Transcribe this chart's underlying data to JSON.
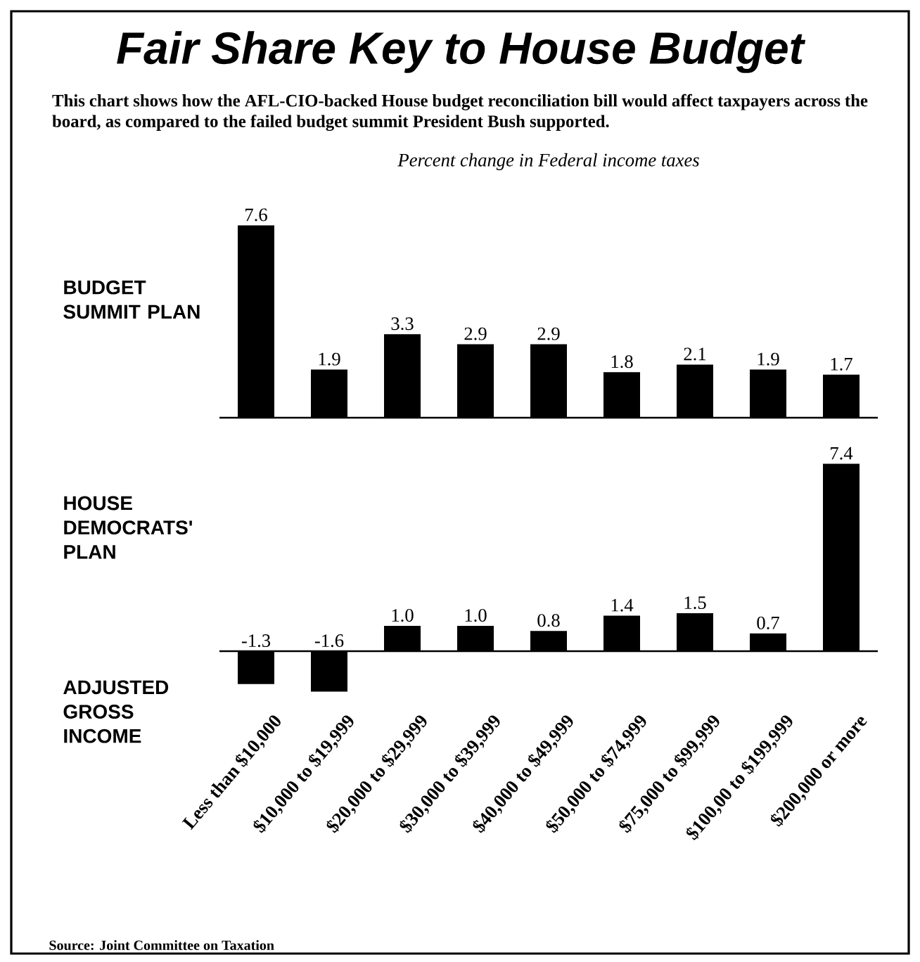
{
  "chart_data": [
    {
      "type": "bar",
      "title": "Fair Share Key to House Budget",
      "subtitle": "This chart shows how the AFL-CIO-backed House budget reconciliation bill would affect taxpayers across the board, as compared to the failed budget summit President Bush supported.",
      "ylabel": "BUDGET SUMMIT PLAN",
      "annotations": [
        "Percent change in Federal income taxes"
      ],
      "categories": [
        null,
        null,
        null,
        null,
        null,
        null,
        null,
        null,
        null
      ],
      "values": [
        7.6,
        1.9,
        3.3,
        2.9,
        2.9,
        1.8,
        2.1,
        1.9,
        1.7
      ],
      "value_labels": [
        "7.6",
        "1.9",
        "3.3",
        "2.9",
        "2.9",
        "1.8",
        "2.1",
        "1.9",
        "1.7"
      ],
      "color": "#000000",
      "tick_labels": false
    },
    {
      "type": "bar",
      "ylabel": "HOUSE DEMOCRATS' PLAN",
      "xlabel": "ADJUSTED GROSS INCOME",
      "annotations": [
        "Source: Joint Committee on Taxation"
      ],
      "categories": [
        "Less than $10,000",
        "$10,000 to $19,999",
        "$20,000 to $29,999",
        "$30,000 to $39,999",
        "$40,000 to $49,999",
        "$50,000 to $74,999",
        "$75,000 to $99,999",
        "$100,00 to $199,999",
        "$200,000 or more"
      ],
      "values": [
        -1.3,
        -1.6,
        1.0,
        1.0,
        0.8,
        1.4,
        1.5,
        0.7,
        7.4
      ],
      "value_labels": [
        "-1.3",
        "-1.6",
        "1.0",
        "1.0",
        "0.8",
        "1.4",
        "1.5",
        "0.7",
        "7.4"
      ],
      "color": "#000000",
      "tick_labels": "x"
    }
  ]
}
